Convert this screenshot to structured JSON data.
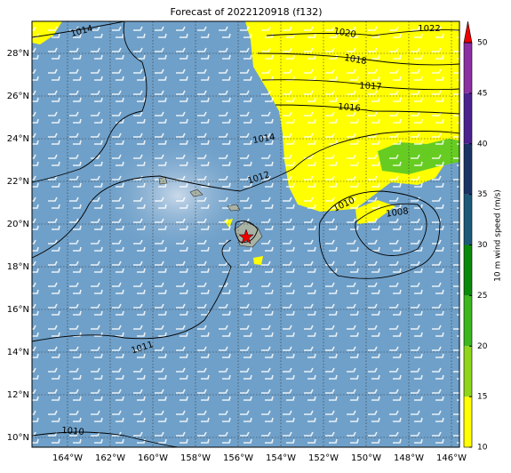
{
  "title": "Forecast of 2022120918 (f132)",
  "map": {
    "lat_labels": [
      "28°N",
      "26°N",
      "24°N",
      "22°N",
      "20°N",
      "18°N",
      "16°N",
      "14°N",
      "12°N",
      "10°N"
    ],
    "lon_labels": [
      "164°W",
      "162°W",
      "160°W",
      "158°W",
      "156°W",
      "154°W",
      "152°W",
      "150°W",
      "148°W",
      "146°W"
    ],
    "isobar_labels": [
      1014,
      1020,
      1022,
      1018,
      1017,
      1016,
      1014,
      1012,
      1010,
      1008,
      1011,
      1010
    ]
  },
  "colorbar": {
    "label": "10 m wind speed (m/s)",
    "ticks": [
      10,
      15,
      20,
      25,
      30,
      35,
      40,
      45,
      50
    ],
    "colors": [
      "#ffff00",
      "#8fd61a",
      "#3cb81e",
      "#0a8a0a",
      "#1d5a7a",
      "#1b3466",
      "#4b2190",
      "#8c2fa3"
    ],
    "extend_color": "#ee0000"
  }
}
